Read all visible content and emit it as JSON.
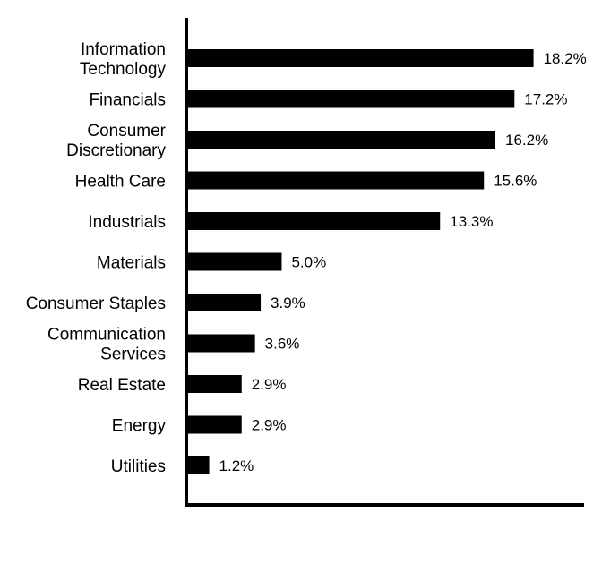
{
  "chart_data": {
    "type": "bar",
    "orientation": "horizontal",
    "categories": [
      [
        "Information",
        "Technology"
      ],
      [
        "Financials"
      ],
      [
        "Consumer",
        "Discretionary"
      ],
      [
        "Health Care"
      ],
      [
        "Industrials"
      ],
      [
        "Materials"
      ],
      [
        "Consumer Staples"
      ],
      [
        "Communication",
        "Services"
      ],
      [
        "Real Estate"
      ],
      [
        "Energy"
      ],
      [
        "Utilities"
      ]
    ],
    "values": [
      18.2,
      17.2,
      16.2,
      15.6,
      13.3,
      5.0,
      3.9,
      3.6,
      2.9,
      2.9,
      1.2
    ],
    "value_labels": [
      "18.2%",
      "17.2%",
      "16.2%",
      "15.6%",
      "13.3%",
      "5.0%",
      "3.9%",
      "3.6%",
      "2.9%",
      "2.9%",
      "1.2%"
    ],
    "xlim": [
      0,
      21.6
    ],
    "grid": false,
    "legend": "none",
    "bar_color": "#000000",
    "axis_color": "#000000"
  }
}
